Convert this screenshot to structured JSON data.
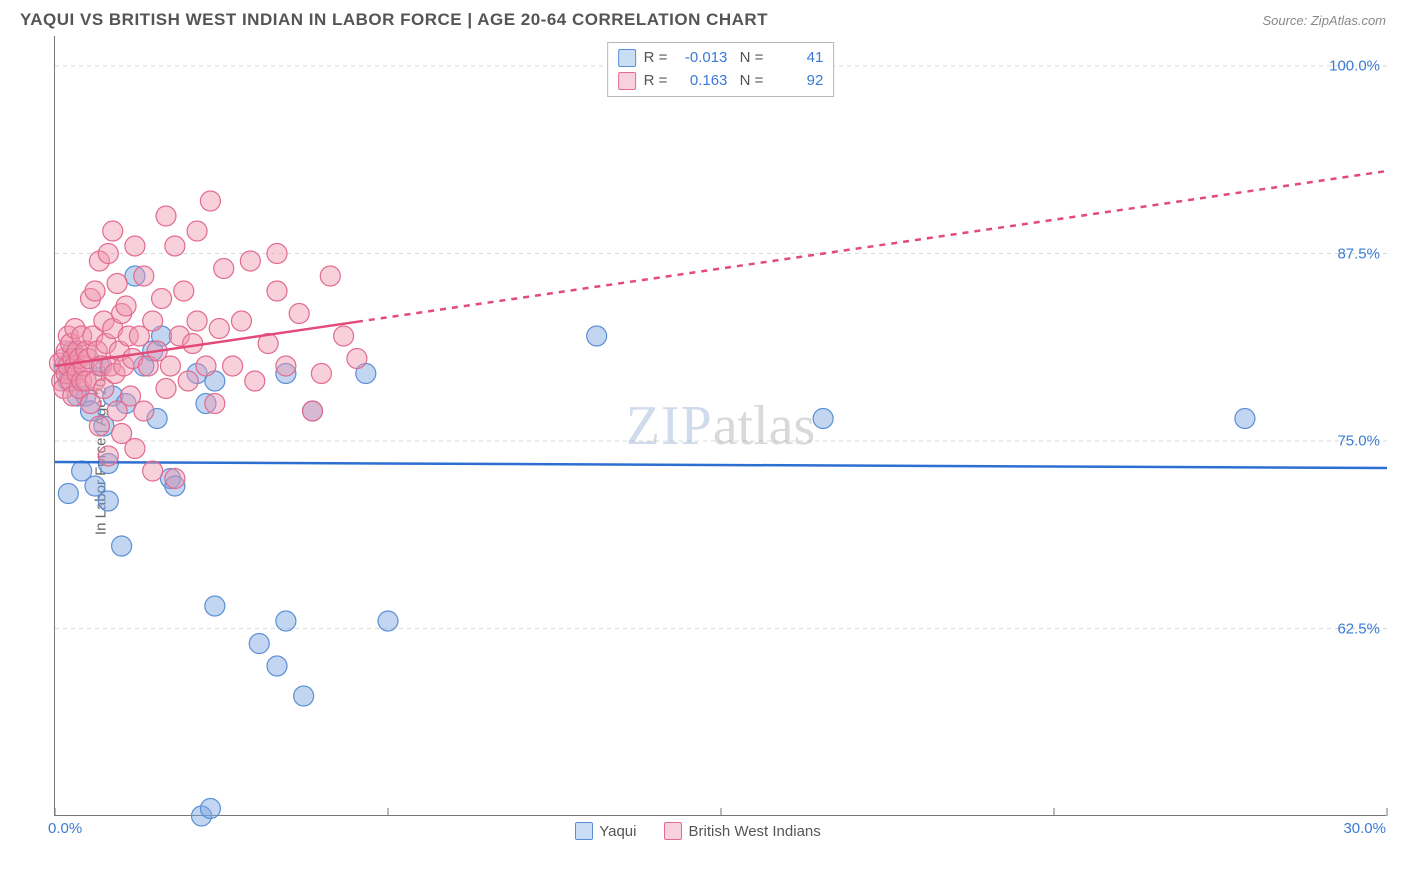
{
  "chart": {
    "type": "scatter",
    "title": "YAQUI VS BRITISH WEST INDIAN IN LABOR FORCE | AGE 20-64 CORRELATION CHART",
    "source": "Source: ZipAtlas.com",
    "y_axis_label": "In Labor Force | Age 20-64",
    "watermark_part1": "ZIP",
    "watermark_part2": "atlas",
    "background_color": "#ffffff",
    "axis_color": "#777777",
    "grid_color": "#d8d8d8",
    "grid_dash": "4 4",
    "tick_label_color": "#3a7bd5",
    "x": {
      "min": 0.0,
      "max": 30.0,
      "ticks": [
        0.0,
        7.5,
        15.0,
        22.5,
        30.0
      ],
      "tick_labels_shown": {
        "min": "0.0%",
        "max": "30.0%"
      }
    },
    "y": {
      "min": 50.0,
      "max": 102.0,
      "gridlines": [
        62.5,
        75.0,
        87.5,
        100.0
      ],
      "grid_labels": [
        "62.5%",
        "75.0%",
        "87.5%",
        "100.0%"
      ]
    },
    "series": [
      {
        "key": "yaqui",
        "label": "Yaqui",
        "color_fill": "rgba(120,165,225,0.45)",
        "color_stroke": "#5b8fd6",
        "swatch_fill": "#c9ddf4",
        "swatch_border": "#5b8fd6",
        "marker_radius": 10,
        "trend": {
          "color": "#2d6fd0",
          "width": 2.5,
          "y_at_xmin": 73.6,
          "y_at_xmax": 73.2,
          "solid_until_x": 30.0
        },
        "corr": {
          "R": "-0.013",
          "N": "41"
        },
        "points": [
          [
            0.2,
            80.0
          ],
          [
            0.3,
            79.0
          ],
          [
            0.4,
            81.0
          ],
          [
            0.4,
            79.4
          ],
          [
            0.5,
            78.0
          ],
          [
            0.7,
            78.0
          ],
          [
            0.8,
            77.0
          ],
          [
            0.6,
            73.0
          ],
          [
            0.9,
            72.0
          ],
          [
            0.3,
            71.5
          ],
          [
            1.0,
            80.0
          ],
          [
            1.1,
            76.0
          ],
          [
            1.3,
            78.0
          ],
          [
            1.2,
            73.5
          ],
          [
            1.6,
            77.5
          ],
          [
            1.8,
            86.0
          ],
          [
            2.0,
            80.0
          ],
          [
            2.2,
            81.0
          ],
          [
            2.4,
            82.0
          ],
          [
            2.3,
            76.5
          ],
          [
            2.6,
            72.5
          ],
          [
            2.7,
            72.0
          ],
          [
            3.2,
            79.5
          ],
          [
            3.4,
            77.5
          ],
          [
            3.6,
            79.0
          ],
          [
            5.2,
            79.5
          ],
          [
            5.8,
            77.0
          ],
          [
            7.0,
            79.5
          ],
          [
            12.2,
            82.0
          ],
          [
            17.3,
            76.5
          ],
          [
            26.8,
            76.5
          ],
          [
            1.5,
            68.0
          ],
          [
            3.6,
            64.0
          ],
          [
            5.2,
            63.0
          ],
          [
            7.5,
            63.0
          ],
          [
            4.6,
            61.5
          ],
          [
            5.0,
            60.0
          ],
          [
            5.6,
            58.0
          ],
          [
            3.3,
            50.0
          ],
          [
            3.5,
            50.5
          ],
          [
            1.2,
            71.0
          ]
        ]
      },
      {
        "key": "bwi",
        "label": "British West Indians",
        "color_fill": "rgba(240,150,175,0.45)",
        "color_stroke": "#e26b8e",
        "swatch_fill": "#f7d2de",
        "swatch_border": "#e26b8e",
        "marker_radius": 10,
        "trend": {
          "color": "#e24a7a",
          "width": 2.5,
          "y_at_xmin": 80.0,
          "y_at_xmax": 93.0,
          "solid_until_x": 6.8
        },
        "corr": {
          "R": "0.163",
          "N": "92"
        },
        "points": [
          [
            0.1,
            80.2
          ],
          [
            0.15,
            79.0
          ],
          [
            0.2,
            80.5
          ],
          [
            0.2,
            78.5
          ],
          [
            0.25,
            81.0
          ],
          [
            0.25,
            79.5
          ],
          [
            0.3,
            80.0
          ],
          [
            0.3,
            82.0
          ],
          [
            0.35,
            79.0
          ],
          [
            0.35,
            81.5
          ],
          [
            0.4,
            80.5
          ],
          [
            0.4,
            78.0
          ],
          [
            0.45,
            80.0
          ],
          [
            0.45,
            82.5
          ],
          [
            0.5,
            79.5
          ],
          [
            0.5,
            81.0
          ],
          [
            0.55,
            80.5
          ],
          [
            0.55,
            78.5
          ],
          [
            0.6,
            82.0
          ],
          [
            0.6,
            79.0
          ],
          [
            0.65,
            80.0
          ],
          [
            0.7,
            81.0
          ],
          [
            0.7,
            79.0
          ],
          [
            0.75,
            80.5
          ],
          [
            0.8,
            84.5
          ],
          [
            0.8,
            77.5
          ],
          [
            0.85,
            82.0
          ],
          [
            0.9,
            85.0
          ],
          [
            0.9,
            79.0
          ],
          [
            0.95,
            81.0
          ],
          [
            1.0,
            87.0
          ],
          [
            1.0,
            76.0
          ],
          [
            1.05,
            80.0
          ],
          [
            1.1,
            83.0
          ],
          [
            1.1,
            78.5
          ],
          [
            1.15,
            81.5
          ],
          [
            1.2,
            87.5
          ],
          [
            1.2,
            74.0
          ],
          [
            1.25,
            80.0
          ],
          [
            1.3,
            82.5
          ],
          [
            1.3,
            89.0
          ],
          [
            1.35,
            79.5
          ],
          [
            1.4,
            85.5
          ],
          [
            1.4,
            77.0
          ],
          [
            1.45,
            81.0
          ],
          [
            1.5,
            83.5
          ],
          [
            1.5,
            75.5
          ],
          [
            1.55,
            80.0
          ],
          [
            1.6,
            84.0
          ],
          [
            1.65,
            82.0
          ],
          [
            1.7,
            78.0
          ],
          [
            1.75,
            80.5
          ],
          [
            1.8,
            88.0
          ],
          [
            1.8,
            74.5
          ],
          [
            1.9,
            82.0
          ],
          [
            2.0,
            86.0
          ],
          [
            2.0,
            77.0
          ],
          [
            2.1,
            80.0
          ],
          [
            2.2,
            83.0
          ],
          [
            2.2,
            73.0
          ],
          [
            2.3,
            81.0
          ],
          [
            2.4,
            84.5
          ],
          [
            2.5,
            78.5
          ],
          [
            2.5,
            90.0
          ],
          [
            2.6,
            80.0
          ],
          [
            2.7,
            88.0
          ],
          [
            2.7,
            72.5
          ],
          [
            2.8,
            82.0
          ],
          [
            2.9,
            85.0
          ],
          [
            3.0,
            79.0
          ],
          [
            3.1,
            81.5
          ],
          [
            3.2,
            83.0
          ],
          [
            3.2,
            89.0
          ],
          [
            3.4,
            80.0
          ],
          [
            3.5,
            91.0
          ],
          [
            3.6,
            77.5
          ],
          [
            3.7,
            82.5
          ],
          [
            3.8,
            86.5
          ],
          [
            4.0,
            80.0
          ],
          [
            4.2,
            83.0
          ],
          [
            4.4,
            87.0
          ],
          [
            4.5,
            79.0
          ],
          [
            4.8,
            81.5
          ],
          [
            5.0,
            85.0
          ],
          [
            5.0,
            87.5
          ],
          [
            5.2,
            80.0
          ],
          [
            5.5,
            83.5
          ],
          [
            5.8,
            77.0
          ],
          [
            6.0,
            79.5
          ],
          [
            6.2,
            86.0
          ],
          [
            6.5,
            82.0
          ],
          [
            6.8,
            80.5
          ]
        ]
      }
    ],
    "bottom_legend": [
      {
        "series": "yaqui"
      },
      {
        "series": "bwi"
      }
    ]
  }
}
